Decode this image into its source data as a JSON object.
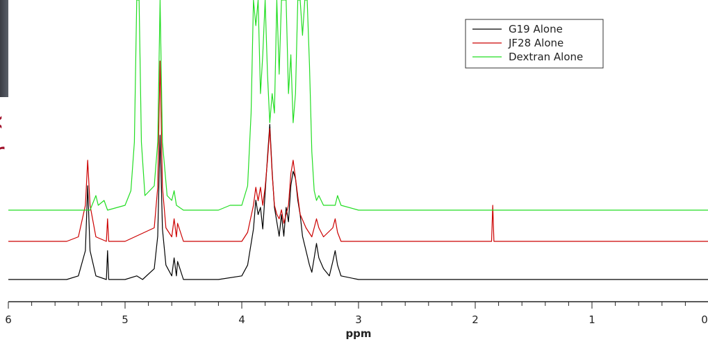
{
  "chart_data": {
    "type": "line",
    "xlabel": "ppm",
    "xlim": [
      6,
      0
    ],
    "x_ticks": [
      "6",
      "5",
      "4",
      "3",
      "2",
      "1",
      "0"
    ],
    "legend": {
      "position": "top-right"
    },
    "grid": false,
    "series": [
      {
        "name": "G19 Alone",
        "color": "#000000",
        "points": [
          [
            6.0,
            0
          ],
          [
            5.5,
            0
          ],
          [
            5.4,
            1
          ],
          [
            5.34,
            8
          ],
          [
            5.32,
            26
          ],
          [
            5.3,
            8
          ],
          [
            5.25,
            1
          ],
          [
            5.16,
            0
          ],
          [
            5.15,
            8
          ],
          [
            5.14,
            0
          ],
          [
            5.0,
            0
          ],
          [
            4.9,
            1
          ],
          [
            4.85,
            0
          ],
          [
            4.75,
            3
          ],
          [
            4.72,
            12
          ],
          [
            4.7,
            40
          ],
          [
            4.68,
            14
          ],
          [
            4.65,
            4
          ],
          [
            4.6,
            1
          ],
          [
            4.58,
            6
          ],
          [
            4.56,
            1
          ],
          [
            4.55,
            5
          ],
          [
            4.5,
            0
          ],
          [
            4.2,
            0
          ],
          [
            4.0,
            1
          ],
          [
            3.95,
            4
          ],
          [
            3.9,
            14
          ],
          [
            3.88,
            22
          ],
          [
            3.86,
            18
          ],
          [
            3.84,
            20
          ],
          [
            3.82,
            14
          ],
          [
            3.8,
            24
          ],
          [
            3.78,
            34
          ],
          [
            3.76,
            43
          ],
          [
            3.74,
            30
          ],
          [
            3.72,
            20
          ],
          [
            3.7,
            16
          ],
          [
            3.68,
            12
          ],
          [
            3.66,
            18
          ],
          [
            3.64,
            12
          ],
          [
            3.62,
            20
          ],
          [
            3.6,
            16
          ],
          [
            3.58,
            26
          ],
          [
            3.56,
            30
          ],
          [
            3.54,
            28
          ],
          [
            3.52,
            22
          ],
          [
            3.5,
            18
          ],
          [
            3.48,
            12
          ],
          [
            3.45,
            8
          ],
          [
            3.42,
            4
          ],
          [
            3.4,
            2
          ],
          [
            3.38,
            6
          ],
          [
            3.36,
            10
          ],
          [
            3.34,
            6
          ],
          [
            3.3,
            3
          ],
          [
            3.25,
            1
          ],
          [
            3.22,
            5
          ],
          [
            3.2,
            8
          ],
          [
            3.18,
            4
          ],
          [
            3.15,
            1
          ],
          [
            3.0,
            0
          ],
          [
            0,
            0
          ]
        ]
      },
      {
        "name": "JF28 Alone",
        "color": "#cc0000",
        "points": [
          [
            6.0,
            0
          ],
          [
            5.5,
            0
          ],
          [
            5.4,
            1
          ],
          [
            5.34,
            8
          ],
          [
            5.32,
            18
          ],
          [
            5.3,
            8
          ],
          [
            5.25,
            1
          ],
          [
            5.16,
            0
          ],
          [
            5.15,
            5
          ],
          [
            5.14,
            0
          ],
          [
            5.0,
            0
          ],
          [
            4.75,
            3
          ],
          [
            4.72,
            12
          ],
          [
            4.7,
            40
          ],
          [
            4.68,
            12
          ],
          [
            4.65,
            3
          ],
          [
            4.6,
            1
          ],
          [
            4.58,
            5
          ],
          [
            4.56,
            1
          ],
          [
            4.55,
            4
          ],
          [
            4.5,
            0
          ],
          [
            4.0,
            0
          ],
          [
            3.95,
            2
          ],
          [
            3.9,
            8
          ],
          [
            3.88,
            12
          ],
          [
            3.86,
            9
          ],
          [
            3.84,
            12
          ],
          [
            3.82,
            8
          ],
          [
            3.8,
            12
          ],
          [
            3.78,
            18
          ],
          [
            3.76,
            25
          ],
          [
            3.74,
            15
          ],
          [
            3.72,
            8
          ],
          [
            3.7,
            6
          ],
          [
            3.68,
            5
          ],
          [
            3.66,
            7
          ],
          [
            3.64,
            4
          ],
          [
            3.62,
            6
          ],
          [
            3.6,
            8
          ],
          [
            3.58,
            15
          ],
          [
            3.56,
            18
          ],
          [
            3.54,
            14
          ],
          [
            3.52,
            10
          ],
          [
            3.5,
            6
          ],
          [
            3.45,
            3
          ],
          [
            3.4,
            1
          ],
          [
            3.38,
            3
          ],
          [
            3.36,
            5
          ],
          [
            3.34,
            3
          ],
          [
            3.3,
            1
          ],
          [
            3.22,
            3
          ],
          [
            3.2,
            5
          ],
          [
            3.18,
            2
          ],
          [
            3.15,
            0
          ],
          [
            1.86,
            0
          ],
          [
            1.85,
            8
          ],
          [
            1.84,
            0
          ],
          [
            0,
            0
          ]
        ]
      },
      {
        "name": "Dextran Alone",
        "color": "#22dd22",
        "points": [
          [
            6.0,
            0
          ],
          [
            5.3,
            0
          ],
          [
            5.25,
            3
          ],
          [
            5.23,
            1
          ],
          [
            5.18,
            2
          ],
          [
            5.15,
            0
          ],
          [
            5.0,
            1
          ],
          [
            4.95,
            4
          ],
          [
            4.92,
            14
          ],
          [
            4.9,
            45
          ],
          [
            4.88,
            45
          ],
          [
            4.86,
            14
          ],
          [
            4.83,
            3
          ],
          [
            4.75,
            5
          ],
          [
            4.72,
            14
          ],
          [
            4.7,
            45
          ],
          [
            4.68,
            14
          ],
          [
            4.64,
            3
          ],
          [
            4.6,
            2
          ],
          [
            4.58,
            4
          ],
          [
            4.56,
            1
          ],
          [
            4.5,
            0
          ],
          [
            4.2,
            0
          ],
          [
            4.1,
            1
          ],
          [
            4.0,
            1
          ],
          [
            3.95,
            5
          ],
          [
            3.92,
            20
          ],
          [
            3.9,
            45
          ],
          [
            3.88,
            38
          ],
          [
            3.86,
            45
          ],
          [
            3.84,
            24
          ],
          [
            3.82,
            32
          ],
          [
            3.8,
            45
          ],
          [
            3.78,
            28
          ],
          [
            3.76,
            18
          ],
          [
            3.74,
            24
          ],
          [
            3.72,
            20
          ],
          [
            3.7,
            45
          ],
          [
            3.68,
            28
          ],
          [
            3.66,
            45
          ],
          [
            3.64,
            45
          ],
          [
            3.62,
            45
          ],
          [
            3.6,
            24
          ],
          [
            3.58,
            32
          ],
          [
            3.56,
            18
          ],
          [
            3.54,
            24
          ],
          [
            3.52,
            45
          ],
          [
            3.5,
            45
          ],
          [
            3.48,
            36
          ],
          [
            3.46,
            45
          ],
          [
            3.44,
            45
          ],
          [
            3.42,
            30
          ],
          [
            3.4,
            12
          ],
          [
            3.38,
            4
          ],
          [
            3.36,
            2
          ],
          [
            3.34,
            3
          ],
          [
            3.3,
            1
          ],
          [
            3.2,
            1
          ],
          [
            3.18,
            3
          ],
          [
            3.15,
            1
          ],
          [
            3.0,
            0
          ],
          [
            0,
            0
          ]
        ]
      }
    ]
  }
}
